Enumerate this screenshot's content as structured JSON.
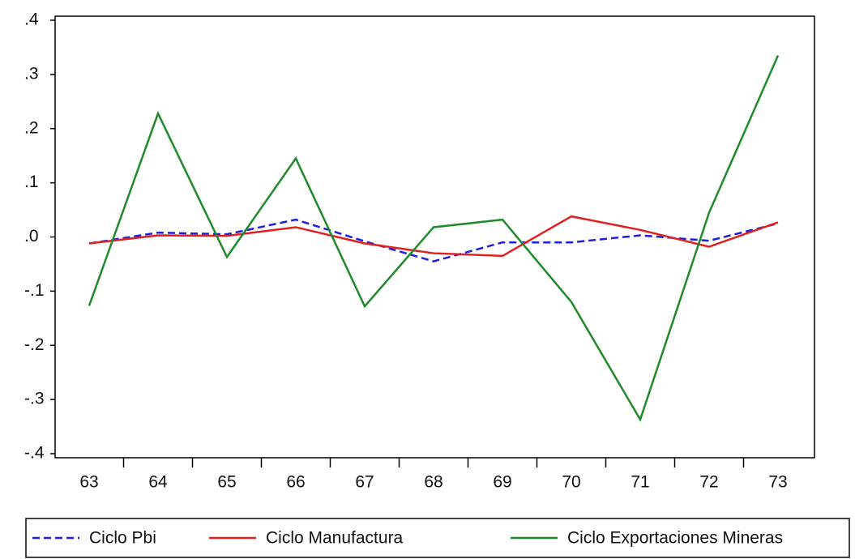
{
  "chart_data": {
    "type": "line",
    "categories": [
      "63",
      "64",
      "65",
      "66",
      "67",
      "68",
      "69",
      "70",
      "71",
      "72",
      "73"
    ],
    "series": [
      {
        "name": "Ciclo Pbi",
        "color": "#1f1fe0",
        "style": "dashed",
        "values": [
          -0.012,
          0.008,
          0.005,
          0.032,
          -0.008,
          -0.045,
          -0.01,
          -0.01,
          0.003,
          -0.007,
          0.025
        ]
      },
      {
        "name": "Ciclo Manufactura",
        "color": "#e01f1f",
        "style": "solid",
        "values": [
          -0.012,
          0.003,
          0.002,
          0.018,
          -0.012,
          -0.03,
          -0.035,
          0.038,
          0.013,
          -0.018,
          0.027
        ]
      },
      {
        "name": "Ciclo Exportaciones Mineras",
        "color": "#1f8a2a",
        "style": "solid",
        "values": [
          -0.127,
          0.228,
          -0.037,
          0.145,
          -0.128,
          0.018,
          0.032,
          -0.12,
          -0.337,
          0.045,
          0.335
        ]
      }
    ],
    "ylim": [
      -0.4,
      0.4
    ],
    "yticks": [
      {
        "value": -0.4,
        "label": "-.4"
      },
      {
        "value": -0.3,
        "label": "-.3"
      },
      {
        "value": -0.2,
        "label": "-.2"
      },
      {
        "value": -0.1,
        "label": "-.1"
      },
      {
        "value": 0,
        "label": ".0"
      },
      {
        "value": 0.1,
        "label": ".1"
      },
      {
        "value": 0.2,
        "label": ".2"
      },
      {
        "value": 0.3,
        "label": ".3"
      },
      {
        "value": 0.4,
        "label": ".4"
      }
    ],
    "grid": false,
    "legend": "bottom"
  }
}
